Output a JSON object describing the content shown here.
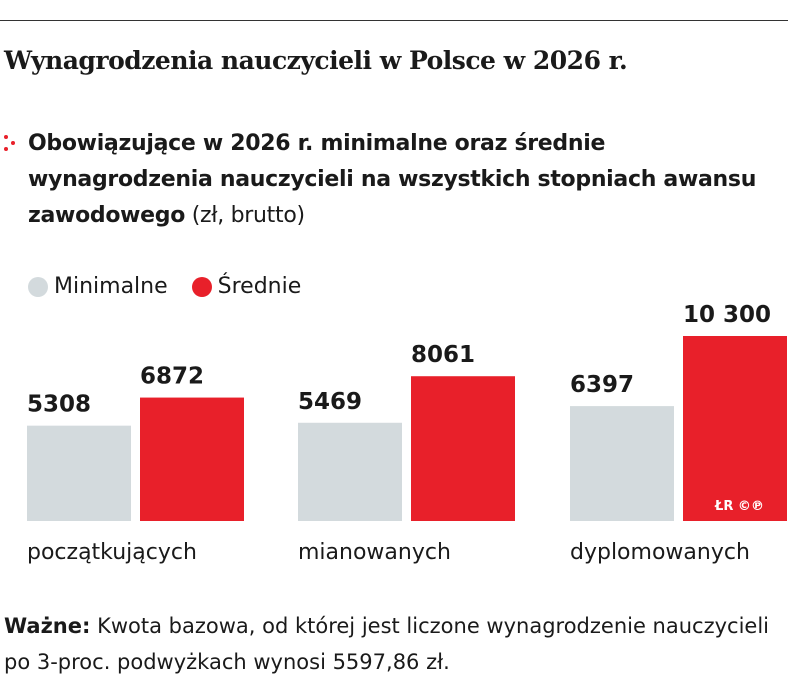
{
  "title": "Wynagrodzenia nauczycieli w Polsce w 2026 r.",
  "subtitle_bold": "Obowiązujące w 2026 r. minimalne oraz średnie wynagrodzenia nauczycieli na wszystkich stopniach awansu zawodowego",
  "subtitle_unit": " (zł, brutto)",
  "note": {
    "label": "Ważne:",
    "text": " Kwota bazowa, od której jest liczone wynagrodzenie nauczycieli po 3-proc. podwyżkach wynosi 5597,86 zł."
  },
  "logo": "ŁR ©℗",
  "colors": {
    "min": "#d3dadd",
    "avg": "#e8202a"
  },
  "chart_data": {
    "type": "bar",
    "categories": [
      "początkujących",
      "mianowanych",
      "dyplomowanych"
    ],
    "series": [
      {
        "name": "Minimalne",
        "values": [
          5308,
          5469,
          6397
        ],
        "labels": [
          "5308",
          "5469",
          "6397"
        ]
      },
      {
        "name": "Średnie",
        "values": [
          6872,
          8061,
          10300
        ],
        "labels": [
          "6872",
          "8061",
          "10 300"
        ]
      }
    ],
    "ylim": [
      0,
      10300
    ],
    "legend": "top-left",
    "grid": false
  }
}
